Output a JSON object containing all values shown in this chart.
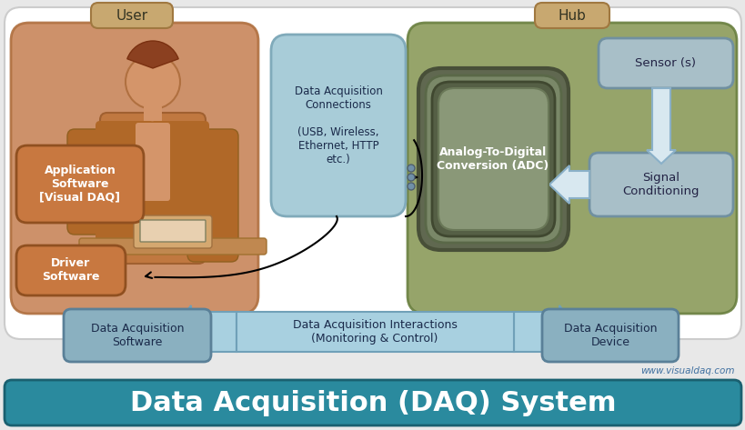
{
  "title": "Data Acquisition (DAQ) System",
  "title_bg_top": "#3a9db0",
  "title_bg_bot": "#1a6070",
  "title_color": "white",
  "title_fontsize": 22,
  "bg_color": "#e8e8e8",
  "user_label": "User",
  "hub_label": "Hub",
  "user_box_color": "#c8855a",
  "hub_box_color": "#8b9a5a",
  "label_tag_color": "#c8a870",
  "label_tag_edge": "#a07840",
  "conn_box_color": "#a8ccd8",
  "conn_box_edge": "#80aaba",
  "adc_outer_color": "#6a7a58",
  "adc_inner_color": "#8a9870",
  "adc_innermost_color": "#6a7a58",
  "sensor_box_color": "#a8bfc8",
  "sensor_box_edge": "#7090a0",
  "app_box_color": "#c87840",
  "app_box_edge": "#905020",
  "bottom_box_color": "#8ab0c0",
  "bottom_box_edge": "#5a8098",
  "arrow_main_color": "#a8d0e0",
  "arrow_main_edge": "#70a0b8",
  "website": "www.visualdaq.com",
  "white_bg": "#ffffff",
  "white_bg_edge": "#cccccc"
}
